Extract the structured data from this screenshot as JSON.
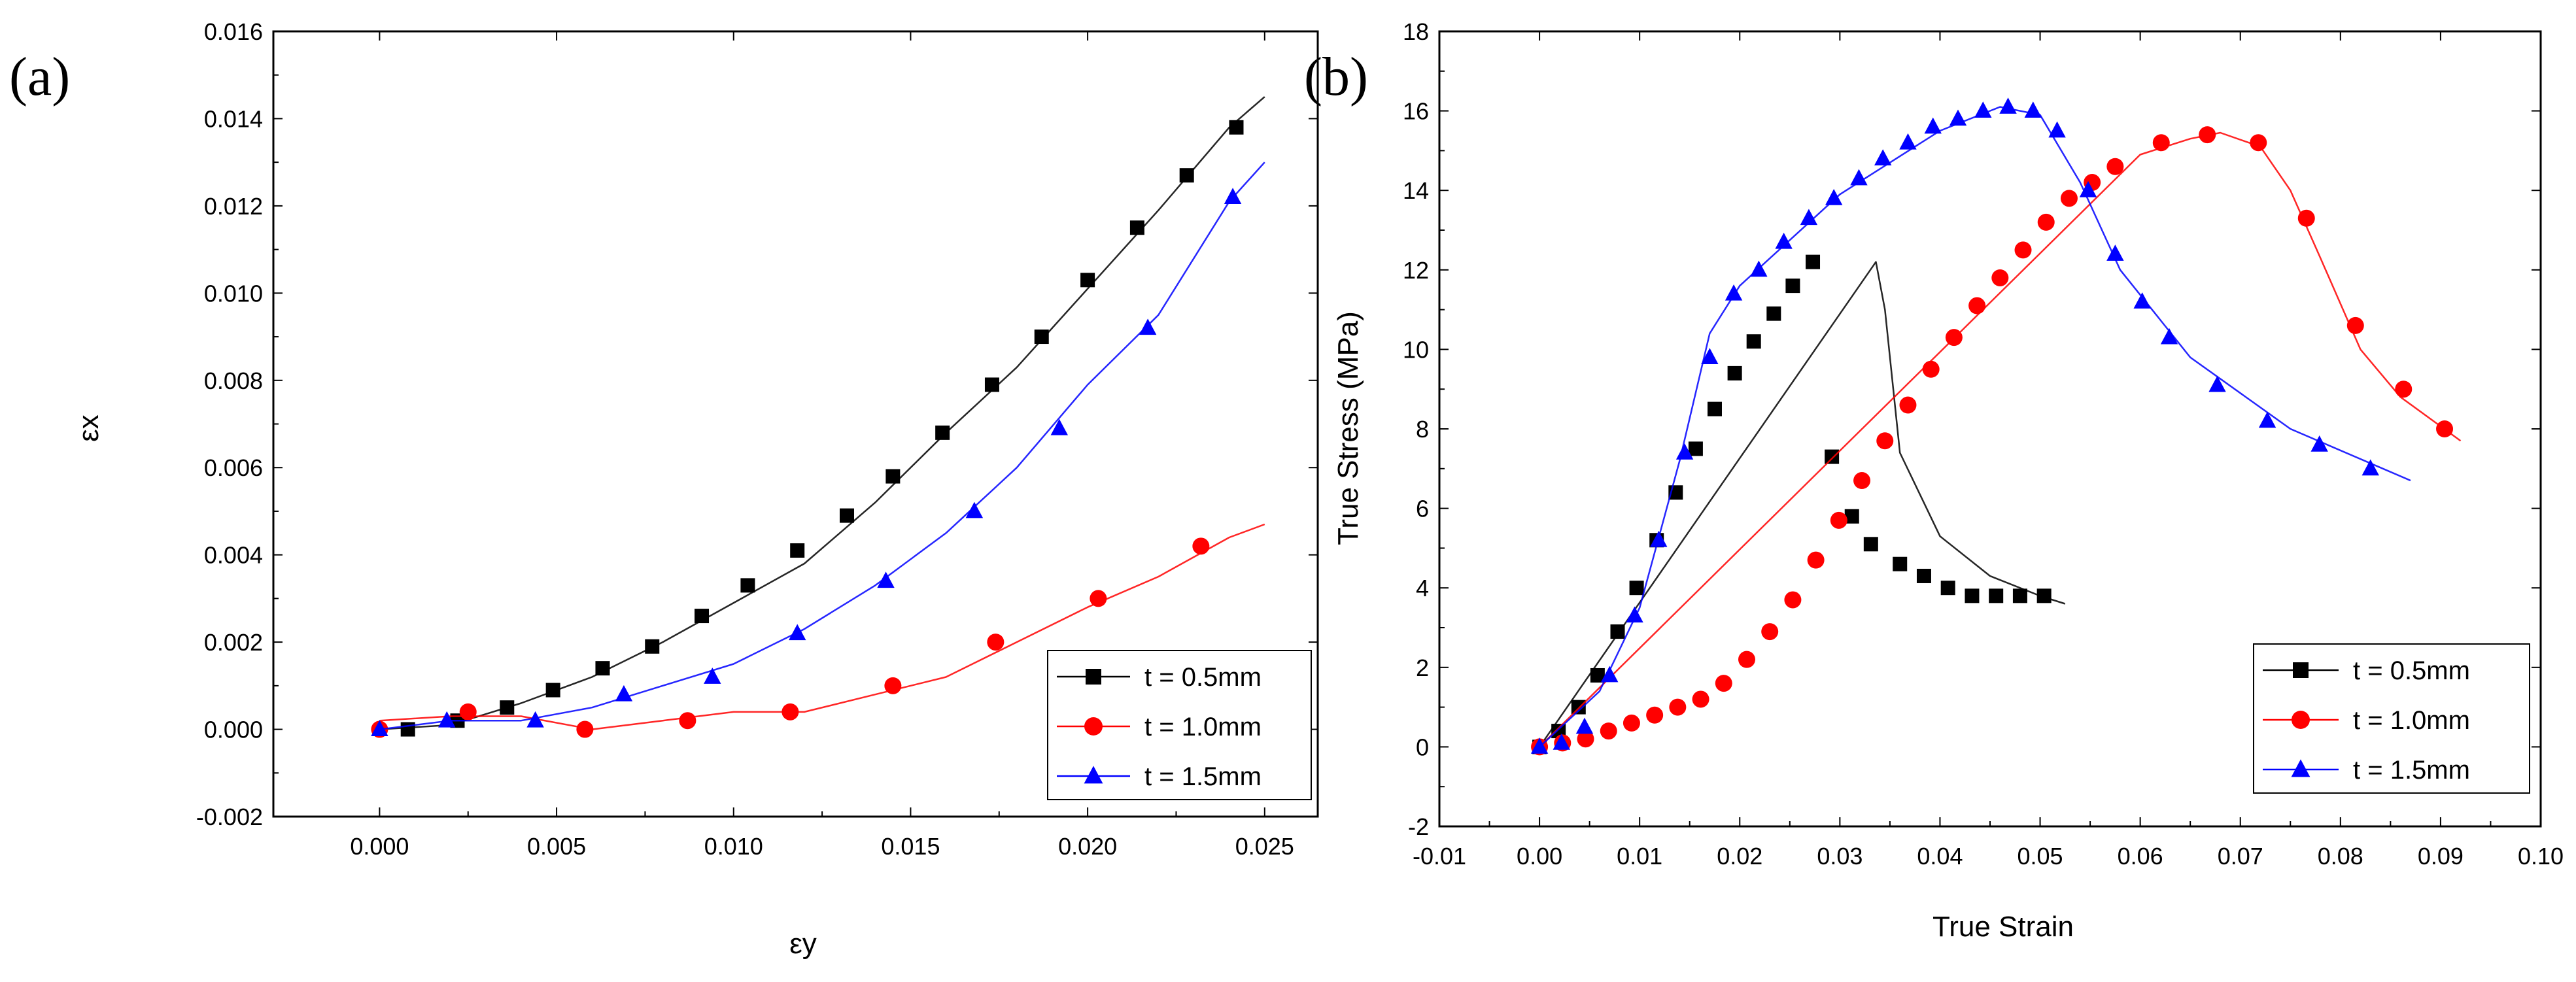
{
  "chart_data": [
    {
      "type": "line",
      "panel_label": "(a)",
      "xlabel": "εy",
      "ylabel": "εx",
      "xlim": [
        -0.003,
        0.0265
      ],
      "ylim": [
        -0.002,
        0.016
      ],
      "xticks": [
        0.0,
        0.005,
        0.01,
        0.015,
        0.02,
        0.025
      ],
      "xtick_labels": [
        "0.000",
        "0.005",
        "0.010",
        "0.015",
        "0.020",
        "0.025"
      ],
      "yticks": [
        -0.002,
        0.0,
        0.002,
        0.004,
        0.006,
        0.008,
        0.01,
        0.012,
        0.014,
        0.016
      ],
      "ytick_labels": [
        "-0.002",
        "0.000",
        "0.002",
        "0.004",
        "0.006",
        "0.008",
        "0.010",
        "0.012",
        "0.014",
        "0.016"
      ],
      "legend_position": "bottom-right",
      "series": [
        {
          "name": "t = 0.5mm",
          "color": "#000000",
          "marker": "square",
          "line": [
            [
              0,
              0
            ],
            [
              0.002,
              0.0001
            ],
            [
              0.004,
              0.0006
            ],
            [
              0.006,
              0.0012
            ],
            [
              0.008,
              0.002
            ],
            [
              0.01,
              0.0029
            ],
            [
              0.012,
              0.0038
            ],
            [
              0.014,
              0.0052
            ],
            [
              0.016,
              0.0068
            ],
            [
              0.018,
              0.0083
            ],
            [
              0.02,
              0.0101
            ],
            [
              0.022,
              0.0119
            ],
            [
              0.024,
              0.0138
            ],
            [
              0.025,
              0.0145
            ]
          ],
          "x": [
            0.0008,
            0.0022,
            0.0036,
            0.0049,
            0.0063,
            0.0077,
            0.0091,
            0.0104,
            0.0118,
            0.0132,
            0.0145,
            0.0159,
            0.0173,
            0.0187,
            0.02,
            0.0214,
            0.0228,
            0.0242
          ],
          "y": [
            0.0,
            0.0002,
            0.0005,
            0.0009,
            0.0014,
            0.0019,
            0.0026,
            0.0033,
            0.0041,
            0.0049,
            0.0058,
            0.0068,
            0.0079,
            0.009,
            0.0103,
            0.0115,
            0.0127,
            0.0138
          ]
        },
        {
          "name": "t = 1.0mm",
          "color": "#ff0000",
          "marker": "circle",
          "line": [
            [
              0,
              0.0002
            ],
            [
              0.002,
              0.0003
            ],
            [
              0.004,
              0.0003
            ],
            [
              0.006,
              0.0
            ],
            [
              0.008,
              0.0002
            ],
            [
              0.01,
              0.0004
            ],
            [
              0.012,
              0.0004
            ],
            [
              0.014,
              0.0008
            ],
            [
              0.016,
              0.0012
            ],
            [
              0.018,
              0.002
            ],
            [
              0.02,
              0.0028
            ],
            [
              0.022,
              0.0035
            ],
            [
              0.024,
              0.0044
            ],
            [
              0.025,
              0.0047
            ]
          ],
          "x": [
            0.0,
            0.0025,
            0.0058,
            0.0087,
            0.0116,
            0.0145,
            0.0174,
            0.0203,
            0.0232
          ],
          "y": [
            0.0,
            0.0004,
            0.0,
            0.0002,
            0.0004,
            0.001,
            0.002,
            0.003,
            0.0042
          ]
        },
        {
          "name": "t = 1.5mm",
          "color": "#0000ff",
          "marker": "triangle",
          "line": [
            [
              0,
              0
            ],
            [
              0.002,
              0.0002
            ],
            [
              0.004,
              0.0002
            ],
            [
              0.006,
              0.0005
            ],
            [
              0.008,
              0.001
            ],
            [
              0.01,
              0.0015
            ],
            [
              0.012,
              0.0023
            ],
            [
              0.014,
              0.0033
            ],
            [
              0.016,
              0.0045
            ],
            [
              0.018,
              0.006
            ],
            [
              0.02,
              0.0079
            ],
            [
              0.022,
              0.0095
            ],
            [
              0.024,
              0.0121
            ],
            [
              0.025,
              0.013
            ]
          ],
          "x": [
            0.0,
            0.0019,
            0.0044,
            0.0069,
            0.0094,
            0.0118,
            0.0143,
            0.0168,
            0.0192,
            0.0217,
            0.0241
          ],
          "y": [
            0.0,
            0.0002,
            0.0002,
            0.0008,
            0.0012,
            0.0022,
            0.0034,
            0.005,
            0.0069,
            0.0092,
            0.0122
          ]
        }
      ]
    },
    {
      "type": "line",
      "panel_label": "(b)",
      "xlabel": "True Strain",
      "ylabel": "True Stress (MPa)",
      "xlim": [
        -0.01,
        0.1
      ],
      "ylim": [
        -2,
        18
      ],
      "xticks": [
        -0.01,
        0.0,
        0.01,
        0.02,
        0.03,
        0.04,
        0.05,
        0.06,
        0.07,
        0.08,
        0.09,
        0.1
      ],
      "xtick_labels": [
        "-0.01",
        "0.00",
        "0.01",
        "0.02",
        "0.03",
        "0.04",
        "0.05",
        "0.06",
        "0.07",
        "0.08",
        "0.09",
        "0.10"
      ],
      "yticks": [
        -2,
        0,
        2,
        4,
        6,
        8,
        10,
        12,
        14,
        16,
        18
      ],
      "ytick_labels": [
        "-2",
        "0",
        "2",
        "4",
        "6",
        "8",
        "10",
        "12",
        "14",
        "16",
        "18"
      ],
      "legend_position": "bottom-right",
      "series": [
        {
          "name": "t = 0.5mm",
          "color": "#000000",
          "marker": "square",
          "line": [
            [
              0,
              0
            ],
            [
              0.0336,
              12.2
            ],
            [
              0.0345,
              11.0
            ],
            [
              0.036,
              7.4
            ],
            [
              0.04,
              5.3
            ],
            [
              0.045,
              4.3
            ],
            [
              0.05,
              3.8
            ],
            [
              0.0525,
              3.6
            ]
          ],
          "x": [
            0.0,
            0.0019,
            0.0039,
            0.0058,
            0.0078,
            0.0097,
            0.0117,
            0.0136,
            0.0156,
            0.0175,
            0.0195,
            0.0214,
            0.0234,
            0.0253,
            0.0273,
            0.0292,
            0.0312,
            0.0331,
            0.036,
            0.0384,
            0.0408,
            0.0432,
            0.0456,
            0.048,
            0.0504
          ],
          "y": [
            0.0,
            0.4,
            1.0,
            1.8,
            2.9,
            4.0,
            5.2,
            6.4,
            7.5,
            8.5,
            9.4,
            10.2,
            10.9,
            11.6,
            12.2,
            7.3,
            5.8,
            5.1,
            4.6,
            4.3,
            4.0,
            3.8,
            3.8,
            3.8,
            3.8
          ]
        },
        {
          "name": "t = 1.0mm",
          "color": "#ff0000",
          "marker": "circle",
          "line": [
            [
              0,
              0
            ],
            [
              0.06,
              14.9
            ],
            [
              0.065,
              15.3
            ],
            [
              0.068,
              15.45
            ],
            [
              0.072,
              15.1
            ],
            [
              0.075,
              14.0
            ],
            [
              0.078,
              12.3
            ],
            [
              0.082,
              10.0
            ],
            [
              0.086,
              8.8
            ],
            [
              0.092,
              7.7
            ]
          ],
          "x": [
            0.0,
            0.0023,
            0.0046,
            0.0069,
            0.0092,
            0.0115,
            0.0138,
            0.0161,
            0.0184,
            0.0207,
            0.023,
            0.0253,
            0.0276,
            0.0299,
            0.0322,
            0.0345,
            0.0368,
            0.0391,
            0.0414,
            0.0437,
            0.046,
            0.0483,
            0.0506,
            0.0529,
            0.0552,
            0.0575,
            0.0621,
            0.0667,
            0.0718,
            0.0766,
            0.0815,
            0.0863,
            0.0904
          ],
          "y": [
            0.0,
            0.1,
            0.2,
            0.4,
            0.6,
            0.8,
            1.0,
            1.2,
            1.6,
            2.2,
            2.9,
            3.7,
            4.7,
            5.7,
            6.7,
            7.7,
            8.6,
            9.5,
            10.3,
            11.1,
            11.8,
            12.5,
            13.2,
            13.8,
            14.2,
            14.6,
            15.2,
            15.4,
            15.2,
            13.3,
            10.6,
            9.0,
            8.0
          ]
        },
        {
          "name": "t = 1.5mm",
          "color": "#0000ff",
          "marker": "triangle",
          "line": [
            [
              0,
              0
            ],
            [
              0.006,
              1.4
            ],
            [
              0.01,
              3.5
            ],
            [
              0.014,
              7.2
            ],
            [
              0.017,
              10.4
            ],
            [
              0.02,
              11.6
            ],
            [
              0.03,
              13.9
            ],
            [
              0.04,
              15.5
            ],
            [
              0.046,
              16.1
            ],
            [
              0.05,
              15.9
            ],
            [
              0.054,
              14.2
            ],
            [
              0.058,
              12.0
            ],
            [
              0.065,
              9.8
            ],
            [
              0.075,
              8.0
            ],
            [
              0.087,
              6.7
            ]
          ],
          "x": [
            0.0,
            0.0022,
            0.0045,
            0.007,
            0.0095,
            0.0119,
            0.0145,
            0.017,
            0.0194,
            0.0219,
            0.0244,
            0.0269,
            0.0294,
            0.0319,
            0.0343,
            0.0368,
            0.0393,
            0.0418,
            0.0443,
            0.0468,
            0.0493,
            0.0517,
            0.0548,
            0.0575,
            0.0602,
            0.0629,
            0.0677,
            0.0727,
            0.0779,
            0.083
          ],
          "y": [
            0.0,
            0.1,
            0.5,
            1.8,
            3.3,
            5.2,
            7.4,
            9.8,
            11.4,
            12.0,
            12.7,
            13.3,
            13.8,
            14.3,
            14.8,
            15.2,
            15.6,
            15.8,
            16.0,
            16.1,
            16.0,
            15.5,
            14.0,
            12.4,
            11.2,
            10.3,
            9.1,
            8.2,
            7.6,
            7.0
          ]
        }
      ]
    }
  ]
}
